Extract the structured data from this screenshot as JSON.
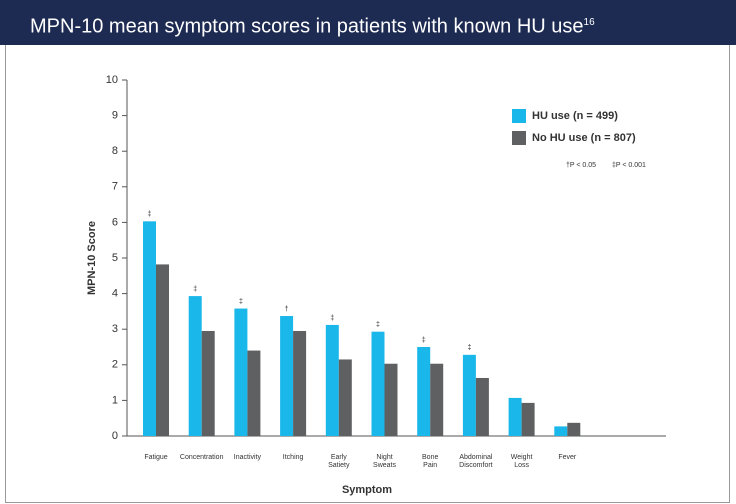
{
  "chart_data": {
    "type": "bar",
    "title": "MPN-10 mean symptom scores in patients with known HU use",
    "title_ref": "16",
    "y_label": "MPN-10 Score",
    "x_label": "Symptom",
    "categories": [
      "Fatigue",
      "Concentration",
      "Inactivity",
      "Itching",
      "Early Satiety",
      "Night Sweats",
      "Bone Pain",
      "Abdominal Discomfort",
      "Weight Loss",
      "Fever"
    ],
    "series": [
      {
        "name": "HU use (n = 499)",
        "color": "#1ab7ea",
        "values": [
          6.03,
          3.93,
          3.58,
          3.37,
          3.12,
          2.93,
          2.5,
          2.28,
          1.07,
          0.27
        ]
      },
      {
        "name": "No HU use (n = 807)",
        "color": "#5f6062",
        "values": [
          4.82,
          2.95,
          2.4,
          2.95,
          2.15,
          2.03,
          2.03,
          1.63,
          0.93,
          0.37
        ]
      }
    ],
    "significance": [
      "‡",
      "‡",
      "‡",
      "†",
      "‡",
      "‡",
      "‡",
      "‡",
      null,
      null
    ],
    "notes": [
      "†P < 0.05",
      "‡P < 0.001"
    ],
    "ylim": [
      0,
      10
    ],
    "yticks": [
      0,
      1,
      2,
      3,
      4,
      5,
      6,
      7,
      8,
      9,
      10
    ],
    "legend": "upper right"
  }
}
